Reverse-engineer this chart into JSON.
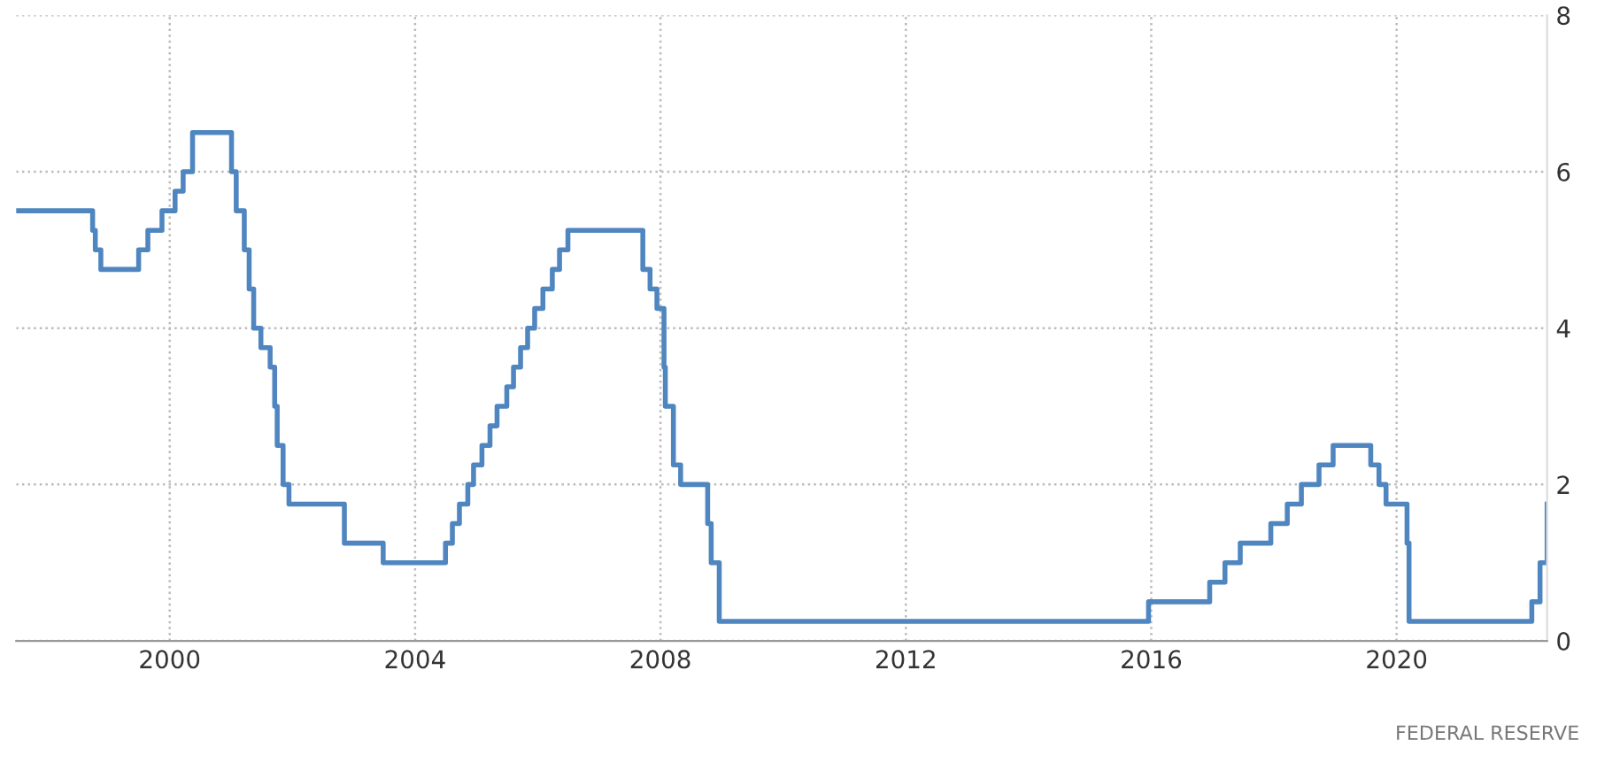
{
  "chart_data": {
    "type": "step",
    "x": [
      "1997-07-01",
      "1998-09-29",
      "1998-10-15",
      "1998-11-17",
      "1999-06-30",
      "1999-08-24",
      "1999-11-16",
      "2000-02-02",
      "2000-03-21",
      "2000-05-16",
      "2001-01-03",
      "2001-01-31",
      "2001-03-20",
      "2001-04-18",
      "2001-05-15",
      "2001-06-27",
      "2001-08-21",
      "2001-09-17",
      "2001-10-02",
      "2001-11-06",
      "2001-12-11",
      "2002-11-06",
      "2003-06-25",
      "2004-06-30",
      "2004-08-10",
      "2004-09-21",
      "2004-11-10",
      "2004-12-14",
      "2005-02-02",
      "2005-03-22",
      "2005-05-03",
      "2005-06-30",
      "2005-08-09",
      "2005-09-20",
      "2005-11-01",
      "2005-12-13",
      "2006-01-31",
      "2006-03-28",
      "2006-05-10",
      "2006-06-29",
      "2007-09-18",
      "2007-10-31",
      "2007-12-11",
      "2008-01-22",
      "2008-01-30",
      "2008-03-18",
      "2008-04-30",
      "2008-10-08",
      "2008-10-29",
      "2008-12-16",
      "2015-12-16",
      "2016-12-14",
      "2017-03-15",
      "2017-06-14",
      "2017-12-13",
      "2018-03-21",
      "2018-06-13",
      "2018-09-26",
      "2018-12-19",
      "2019-07-31",
      "2019-09-18",
      "2019-10-30",
      "2020-03-03",
      "2020-03-15",
      "2022-03-16",
      "2022-05-04",
      "2022-06-15"
    ],
    "series": [
      {
        "color": "#4f86c0",
        "values": [
          5.5,
          5.25,
          5.0,
          4.75,
          5.0,
          5.25,
          5.5,
          5.75,
          6.0,
          6.5,
          6.0,
          5.5,
          5.0,
          4.5,
          4.0,
          3.75,
          3.5,
          3.0,
          2.5,
          2.0,
          1.75,
          1.25,
          1.0,
          1.25,
          1.5,
          1.75,
          2.0,
          2.25,
          2.5,
          2.75,
          3.0,
          3.25,
          3.5,
          3.75,
          4.0,
          4.25,
          4.5,
          4.75,
          5.0,
          5.25,
          4.75,
          4.5,
          4.25,
          3.5,
          3.0,
          2.25,
          2.0,
          1.5,
          1.0,
          0.25,
          0.5,
          0.75,
          1.0,
          1.25,
          1.5,
          1.75,
          2.0,
          2.25,
          2.5,
          2.25,
          2.0,
          1.75,
          1.25,
          0.25,
          0.5,
          1.0,
          1.75
        ]
      }
    ],
    "xlim": [
      "1997-07-01",
      "2022-06-15"
    ],
    "xticks": [
      "2000",
      "2004",
      "2008",
      "2012",
      "2016",
      "2020"
    ],
    "ylim": [
      0,
      8
    ],
    "yticks": [
      0,
      2,
      4,
      6,
      8
    ],
    "grid": true,
    "line_style": "solid",
    "marker": "none",
    "annotations": [
      "FEDERAL RESERVE"
    ]
  }
}
